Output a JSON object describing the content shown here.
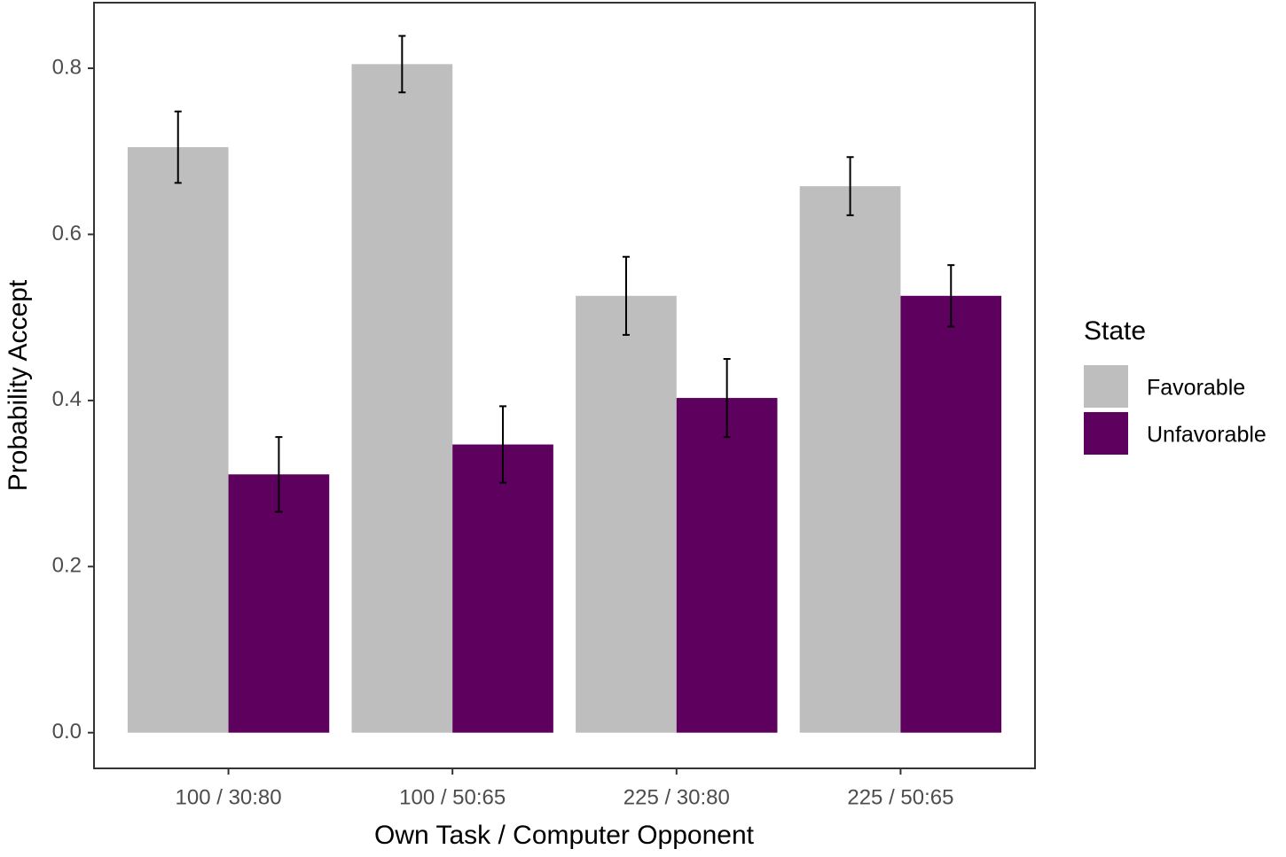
{
  "chart_data": {
    "type": "bar",
    "x_label": "Own Task / Computer Opponent",
    "y_label": "Probability Accept",
    "legend_title": "State",
    "legend_position": "right",
    "categories": [
      "100 / 30:80",
      "100 / 50:65",
      "225 / 30:80",
      "225 / 50:65"
    ],
    "series": [
      {
        "name": "Favorable",
        "color": "#bebebe",
        "values": [
          0.705,
          0.805,
          0.526,
          0.658
        ],
        "errors": [
          0.043,
          0.034,
          0.047,
          0.035
        ]
      },
      {
        "name": "Unfavorable",
        "color": "#5e005e",
        "values": [
          0.311,
          0.347,
          0.403,
          0.526
        ],
        "errors": [
          0.045,
          0.046,
          0.047,
          0.037
        ]
      }
    ],
    "ylim": [
      -0.043,
      0.879
    ],
    "yticks": [
      {
        "value": 0,
        "label": "0.0"
      },
      0.2,
      0.4,
      0.6,
      0.8
    ]
  }
}
